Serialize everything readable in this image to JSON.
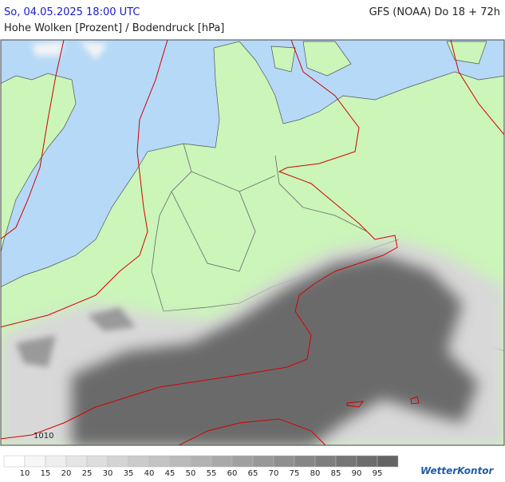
{
  "header": {
    "valid_time": "So, 04.05.2025 18:00 UTC",
    "model_run": "GFS (NOAA) Do 18 + 72h",
    "parameter": "Hohe Wolken [Prozent] / Bodendruck [hPa]"
  },
  "map": {
    "isobar_labels": [
      "1010"
    ]
  },
  "legend": {
    "labels": [
      10,
      15,
      20,
      25,
      30,
      35,
      40,
      45,
      50,
      55,
      60,
      65,
      70,
      75,
      80,
      85,
      90,
      95
    ]
  },
  "logo": {
    "text": "WetterKontor"
  }
}
